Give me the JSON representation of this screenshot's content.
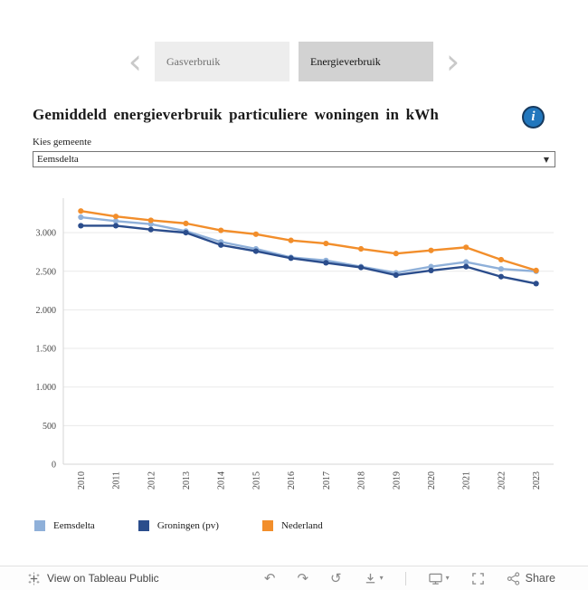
{
  "nav": {
    "prev": "‹",
    "next": "›",
    "tabs": [
      {
        "label": "Gasverbruik",
        "active": false
      },
      {
        "label": "Energieverbruik",
        "active": true
      }
    ]
  },
  "header": {
    "title": "Gemiddeld energieverbruik particuliere woningen in kWh",
    "info_glyph": "i"
  },
  "filter": {
    "label": "Kies gemeente",
    "selected": "Eemsdelta",
    "caret": "▼"
  },
  "chart_data": {
    "type": "line",
    "title": "",
    "xlabel": "",
    "ylabel": "",
    "x": [
      "2010",
      "2011",
      "2012",
      "2013",
      "2014",
      "2015",
      "2016",
      "2017",
      "2018",
      "2019",
      "2020",
      "2021",
      "2022",
      "2023"
    ],
    "series": [
      {
        "name": "Eemsdelta",
        "color": "#8fb0d9",
        "values": [
          3200,
          3150,
          3110,
          3020,
          2880,
          2790,
          2680,
          2640,
          2560,
          2480,
          2560,
          2620,
          2530,
          2500
        ]
      },
      {
        "name": "Groningen (pv)",
        "color": "#2b4d8c",
        "values": [
          3090,
          3090,
          3040,
          3000,
          2840,
          2760,
          2670,
          2610,
          2550,
          2450,
          2510,
          2560,
          2430,
          2340
        ]
      },
      {
        "name": "Nederland",
        "color": "#f28e2b",
        "values": [
          3280,
          3210,
          3160,
          3120,
          3030,
          2980,
          2900,
          2860,
          2790,
          2730,
          2770,
          2810,
          2650,
          2510
        ]
      }
    ],
    "ylim": [
      0,
      3400
    ],
    "yticks": [
      0,
      500,
      1000,
      1500,
      2000,
      2500,
      3000
    ],
    "ytick_labels": [
      "0",
      "500",
      "1.000",
      "1.500",
      "2.000",
      "2.500",
      "3.000"
    ],
    "grid": true,
    "legend_position": "bottom"
  },
  "footer": {
    "view_label": "View on Tableau Public",
    "share_label": "Share"
  }
}
